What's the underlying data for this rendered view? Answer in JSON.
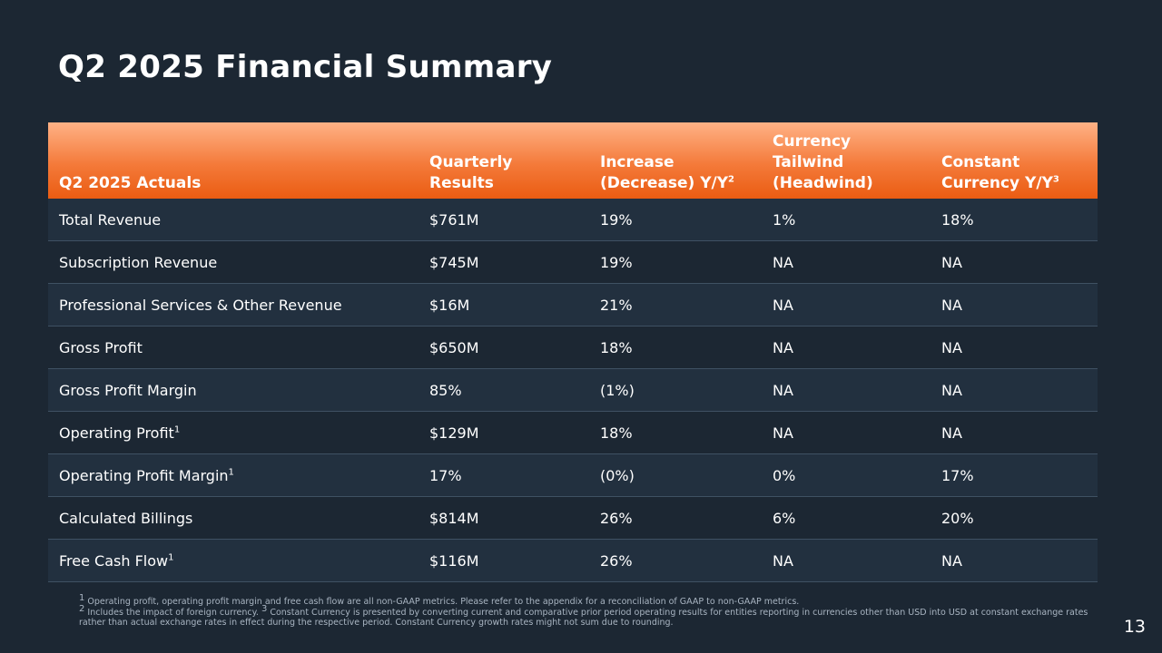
{
  "title": "Q2 2025 Financial Summary",
  "table": {
    "headers": [
      {
        "lines": [
          "Q2 2025 Actuals"
        ]
      },
      {
        "lines": [
          "Quarterly",
          "Results"
        ]
      },
      {
        "lines": [
          "Increase",
          "(Decrease) Y/Y"
        ],
        "sup": "2"
      },
      {
        "lines": [
          "Currency",
          "Tailwind",
          "(Headwind)"
        ]
      },
      {
        "lines": [
          "Constant",
          "Currency Y/Y"
        ],
        "sup": "3"
      }
    ],
    "rows": [
      {
        "label": "Total Revenue",
        "sup": "",
        "indent": false,
        "values": [
          "$761M",
          "19%",
          "1%",
          "18%"
        ]
      },
      {
        "label": "Subscription Revenue",
        "sup": "",
        "indent": true,
        "values": [
          "$745M",
          "19%",
          "NA",
          "NA"
        ]
      },
      {
        "label": "Professional Services & Other Revenue",
        "sup": "",
        "indent": true,
        "values": [
          "$16M",
          "21%",
          "NA",
          "NA"
        ]
      },
      {
        "label": "Gross Profit",
        "sup": "",
        "indent": false,
        "values": [
          "$650M",
          "18%",
          "NA",
          "NA"
        ]
      },
      {
        "label": "Gross Profit Margin",
        "sup": "",
        "indent": true,
        "values": [
          "85%",
          "(1%)",
          "NA",
          "NA"
        ]
      },
      {
        "label": "Operating Profit",
        "sup": "1",
        "indent": false,
        "values": [
          "$129M",
          "18%",
          "NA",
          "NA"
        ]
      },
      {
        "label": "Operating Profit Margin",
        "sup": "1",
        "indent": true,
        "values": [
          "17%",
          "(0%)",
          "0%",
          "17%"
        ]
      },
      {
        "label": "Calculated Billings",
        "sup": "",
        "indent": false,
        "values": [
          "$814M",
          "26%",
          "6%",
          "20%"
        ]
      },
      {
        "label": "Free Cash Flow",
        "sup": "1",
        "indent": false,
        "values": [
          "$116M",
          "26%",
          "NA",
          "NA"
        ]
      }
    ]
  },
  "footnotes": {
    "n1_mark": "1",
    "n1_text": " Operating profit, operating profit margin and free cash flow are all non-GAAP metrics. Please refer to the appendix for a reconciliation of GAAP to non-GAAP metrics.",
    "n2_mark": "2",
    "n2_text": " Includes the impact of foreign currency. ",
    "n3_mark": "3",
    "n3_text": " Constant Currency is presented by converting current and comparative prior period operating results for entities reporting in currencies other than USD into USD at constant exchange rates rather than actual exchange rates in effect during the respective period. Constant Currency growth rates might not sum due to rounding."
  },
  "page_number": "13",
  "colors": {
    "background": "#1c2733",
    "header_orange": "#f47a3a",
    "row_alt": "#22303f",
    "text": "#ffffff"
  }
}
